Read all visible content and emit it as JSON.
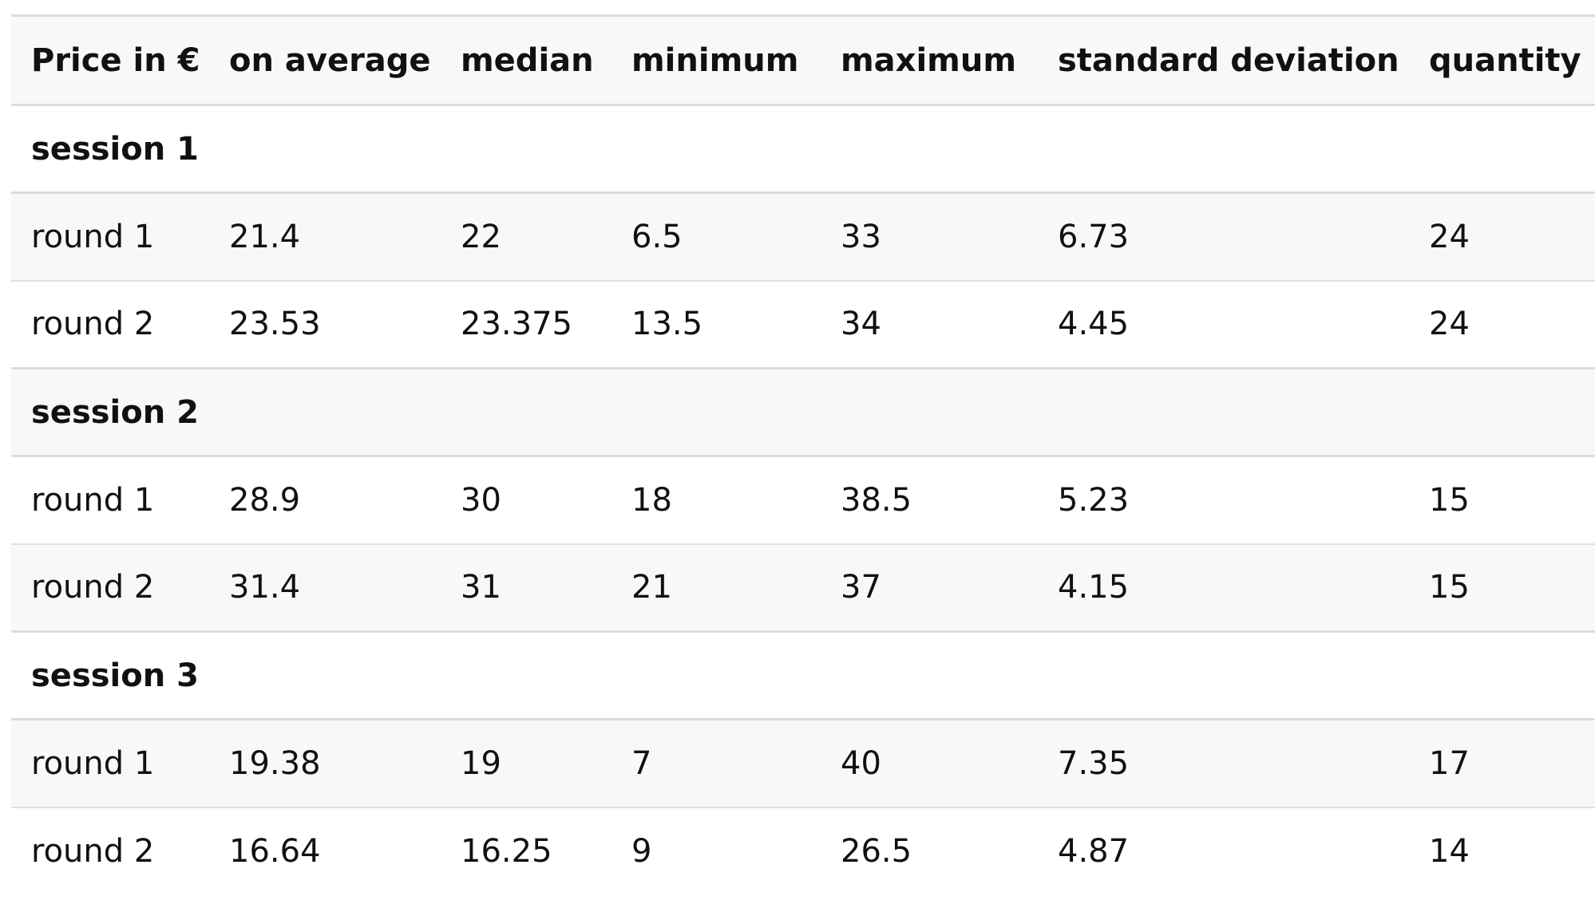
{
  "table": {
    "headers": [
      "Price in €",
      "on average",
      "median",
      "minimum",
      "maximum",
      "standard deviation",
      "quantity"
    ],
    "sessions": [
      {
        "label": "session 1",
        "rounds": [
          [
            "round 1",
            "21.4",
            "22",
            "6.5",
            "33",
            "6.73",
            "24"
          ],
          [
            "round 2",
            "23.53",
            "23.375",
            "13.5",
            "34",
            "4.45",
            "24"
          ]
        ]
      },
      {
        "label": "session 2",
        "rounds": [
          [
            "round 1",
            "28.9",
            "30",
            "18",
            "38.5",
            "5.23",
            "15"
          ],
          [
            "round 2",
            "31.4",
            "31",
            "21",
            "37",
            "4.15",
            "15"
          ]
        ]
      },
      {
        "label": "session 3",
        "rounds": [
          [
            "round 1",
            "19.38",
            "19",
            "7",
            "40",
            "7.35",
            "17"
          ],
          [
            "round 2",
            "16.64",
            "16.25",
            "9",
            "26.5",
            "4.87",
            "14"
          ]
        ]
      }
    ]
  }
}
